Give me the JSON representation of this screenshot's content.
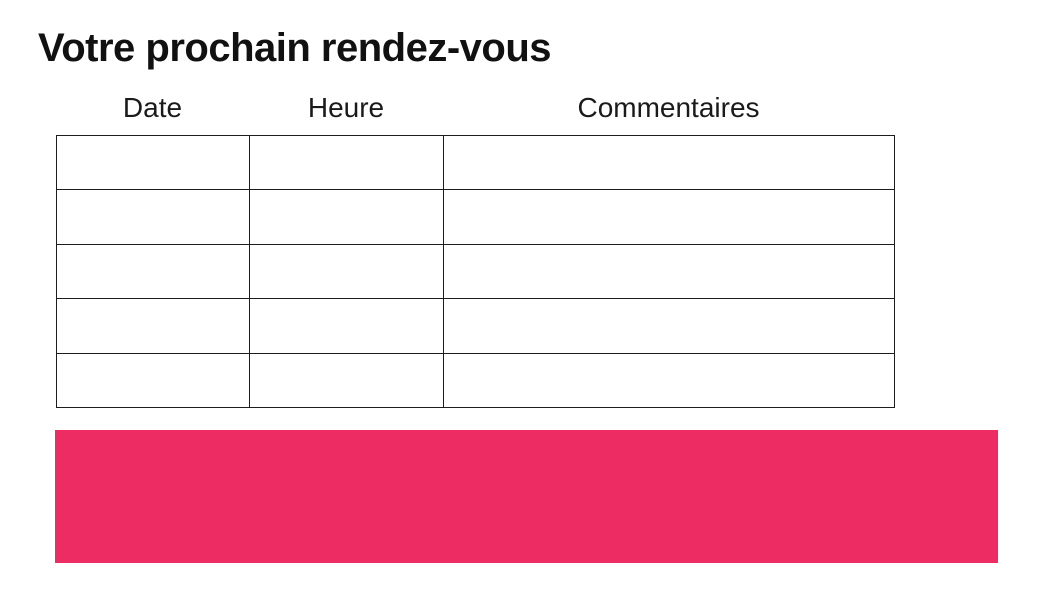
{
  "slide": {
    "title": "Votre prochain rendez-vous"
  },
  "appointments_table": {
    "headers": [
      "Date",
      "Heure",
      "Commentaires"
    ],
    "rows": [
      [
        "",
        "",
        ""
      ],
      [
        "",
        "",
        ""
      ],
      [
        "",
        "",
        ""
      ],
      [
        "",
        "",
        ""
      ],
      [
        "",
        "",
        ""
      ]
    ]
  },
  "colors": {
    "accent_pink": "#EE2C64",
    "table_border": "#1d1d1d",
    "text": "#111111"
  }
}
